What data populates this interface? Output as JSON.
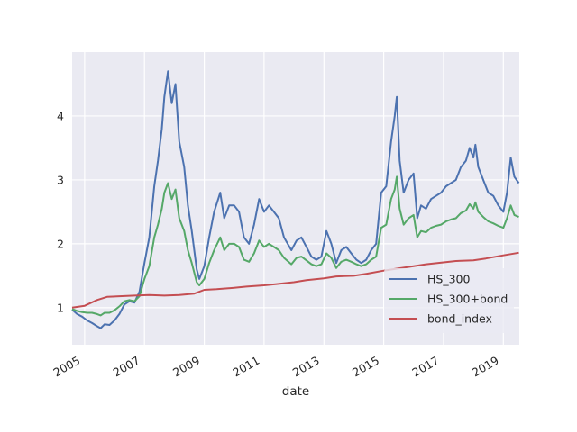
{
  "chart_data": {
    "type": "line",
    "title": "",
    "xlabel": "date",
    "ylabel": "",
    "xlim": [
      "2004-08-01",
      "2019-07-15"
    ],
    "ylim": [
      0.42,
      5.0
    ],
    "x_ticks": [
      "2005",
      "2007",
      "2009",
      "2011",
      "2013",
      "2015",
      "2017",
      "2019"
    ],
    "y_ticks": [
      1,
      2,
      3,
      4
    ],
    "grid": true,
    "background_color": "#EAEAF2",
    "legend_position": "lower-right",
    "series": [
      {
        "name": "HS_300",
        "color": "#4C72B0",
        "points": [
          [
            "2004-08-01",
            0.97
          ],
          [
            "2004-10-01",
            0.9
          ],
          [
            "2004-12-01",
            0.86
          ],
          [
            "2005-02-01",
            0.8
          ],
          [
            "2005-04-01",
            0.76
          ],
          [
            "2005-06-01",
            0.71
          ],
          [
            "2005-07-15",
            0.68
          ],
          [
            "2005-09-01",
            0.74
          ],
          [
            "2005-11-01",
            0.73
          ],
          [
            "2006-01-01",
            0.8
          ],
          [
            "2006-03-01",
            0.9
          ],
          [
            "2006-05-01",
            1.05
          ],
          [
            "2006-07-01",
            1.1
          ],
          [
            "2006-09-01",
            1.08
          ],
          [
            "2006-11-01",
            1.25
          ],
          [
            "2007-01-01",
            1.7
          ],
          [
            "2007-03-01",
            2.1
          ],
          [
            "2007-05-01",
            2.9
          ],
          [
            "2007-06-15",
            3.3
          ],
          [
            "2007-08-01",
            3.8
          ],
          [
            "2007-09-01",
            4.3
          ],
          [
            "2007-10-15",
            4.7
          ],
          [
            "2007-12-01",
            4.2
          ],
          [
            "2008-01-15",
            4.5
          ],
          [
            "2008-03-01",
            3.6
          ],
          [
            "2008-05-01",
            3.2
          ],
          [
            "2008-06-15",
            2.6
          ],
          [
            "2008-08-01",
            2.2
          ],
          [
            "2008-10-01",
            1.6
          ],
          [
            "2008-11-01",
            1.45
          ],
          [
            "2009-01-01",
            1.65
          ],
          [
            "2009-03-01",
            2.1
          ],
          [
            "2009-05-01",
            2.5
          ],
          [
            "2009-07-15",
            2.8
          ],
          [
            "2009-09-01",
            2.4
          ],
          [
            "2009-11-01",
            2.6
          ],
          [
            "2010-01-01",
            2.6
          ],
          [
            "2010-03-01",
            2.5
          ],
          [
            "2010-05-01",
            2.1
          ],
          [
            "2010-07-01",
            2.0
          ],
          [
            "2010-09-01",
            2.3
          ],
          [
            "2010-11-01",
            2.7
          ],
          [
            "2011-01-01",
            2.5
          ],
          [
            "2011-03-01",
            2.6
          ],
          [
            "2011-05-01",
            2.5
          ],
          [
            "2011-07-01",
            2.4
          ],
          [
            "2011-09-01",
            2.1
          ],
          [
            "2011-12-01",
            1.9
          ],
          [
            "2012-02-01",
            2.05
          ],
          [
            "2012-04-01",
            2.1
          ],
          [
            "2012-06-01",
            1.95
          ],
          [
            "2012-08-01",
            1.8
          ],
          [
            "2012-10-01",
            1.75
          ],
          [
            "2012-12-01",
            1.8
          ],
          [
            "2013-02-01",
            2.2
          ],
          [
            "2013-04-01",
            2.0
          ],
          [
            "2013-06-01",
            1.7
          ],
          [
            "2013-08-01",
            1.9
          ],
          [
            "2013-10-01",
            1.95
          ],
          [
            "2013-12-01",
            1.85
          ],
          [
            "2014-02-01",
            1.75
          ],
          [
            "2014-04-01",
            1.7
          ],
          [
            "2014-06-01",
            1.75
          ],
          [
            "2014-08-01",
            1.9
          ],
          [
            "2014-10-01",
            2.0
          ],
          [
            "2014-12-01",
            2.8
          ],
          [
            "2015-02-01",
            2.9
          ],
          [
            "2015-04-01",
            3.6
          ],
          [
            "2015-05-15",
            4.0
          ],
          [
            "2015-06-10",
            4.3
          ],
          [
            "2015-07-15",
            3.3
          ],
          [
            "2015-09-01",
            2.8
          ],
          [
            "2015-11-01",
            3.0
          ],
          [
            "2016-01-01",
            3.1
          ],
          [
            "2016-02-15",
            2.4
          ],
          [
            "2016-04-01",
            2.6
          ],
          [
            "2016-06-01",
            2.55
          ],
          [
            "2016-08-01",
            2.7
          ],
          [
            "2016-10-01",
            2.75
          ],
          [
            "2016-12-01",
            2.8
          ],
          [
            "2017-02-01",
            2.9
          ],
          [
            "2017-04-01",
            2.95
          ],
          [
            "2017-06-01",
            3.0
          ],
          [
            "2017-08-01",
            3.2
          ],
          [
            "2017-10-01",
            3.3
          ],
          [
            "2017-11-15",
            3.5
          ],
          [
            "2018-01-01",
            3.35
          ],
          [
            "2018-01-25",
            3.55
          ],
          [
            "2018-03-01",
            3.2
          ],
          [
            "2018-05-01",
            3.0
          ],
          [
            "2018-07-01",
            2.8
          ],
          [
            "2018-09-01",
            2.75
          ],
          [
            "2018-11-01",
            2.6
          ],
          [
            "2019-01-01",
            2.5
          ],
          [
            "2019-02-15",
            2.8
          ],
          [
            "2019-04-01",
            3.35
          ],
          [
            "2019-05-15",
            3.05
          ],
          [
            "2019-07-10",
            2.95
          ]
        ]
      },
      {
        "name": "HS_300+bond",
        "color": "#55A868",
        "points": [
          [
            "2004-08-01",
            0.98
          ],
          [
            "2004-10-01",
            0.95
          ],
          [
            "2004-12-01",
            0.93
          ],
          [
            "2005-02-01",
            0.92
          ],
          [
            "2005-04-01",
            0.92
          ],
          [
            "2005-06-01",
            0.9
          ],
          [
            "2005-07-15",
            0.88
          ],
          [
            "2005-09-01",
            0.92
          ],
          [
            "2005-11-01",
            0.92
          ],
          [
            "2006-01-01",
            0.96
          ],
          [
            "2006-03-01",
            1.02
          ],
          [
            "2006-05-01",
            1.1
          ],
          [
            "2006-07-01",
            1.12
          ],
          [
            "2006-09-01",
            1.1
          ],
          [
            "2006-11-01",
            1.18
          ],
          [
            "2007-01-01",
            1.45
          ],
          [
            "2007-03-01",
            1.65
          ],
          [
            "2007-05-01",
            2.1
          ],
          [
            "2007-06-15",
            2.3
          ],
          [
            "2007-08-01",
            2.55
          ],
          [
            "2007-09-01",
            2.8
          ],
          [
            "2007-10-15",
            2.95
          ],
          [
            "2007-12-01",
            2.7
          ],
          [
            "2008-01-15",
            2.85
          ],
          [
            "2008-03-01",
            2.4
          ],
          [
            "2008-05-01",
            2.2
          ],
          [
            "2008-06-15",
            1.9
          ],
          [
            "2008-08-01",
            1.7
          ],
          [
            "2008-10-01",
            1.4
          ],
          [
            "2008-11-01",
            1.35
          ],
          [
            "2009-01-01",
            1.45
          ],
          [
            "2009-03-01",
            1.7
          ],
          [
            "2009-05-01",
            1.9
          ],
          [
            "2009-07-15",
            2.1
          ],
          [
            "2009-09-01",
            1.9
          ],
          [
            "2009-11-01",
            2.0
          ],
          [
            "2010-01-01",
            2.0
          ],
          [
            "2010-03-01",
            1.95
          ],
          [
            "2010-05-01",
            1.75
          ],
          [
            "2010-07-01",
            1.72
          ],
          [
            "2010-09-01",
            1.85
          ],
          [
            "2010-11-01",
            2.05
          ],
          [
            "2011-01-01",
            1.95
          ],
          [
            "2011-03-01",
            2.0
          ],
          [
            "2011-05-01",
            1.95
          ],
          [
            "2011-07-01",
            1.9
          ],
          [
            "2011-09-01",
            1.78
          ],
          [
            "2011-12-01",
            1.68
          ],
          [
            "2012-02-01",
            1.78
          ],
          [
            "2012-04-01",
            1.8
          ],
          [
            "2012-06-01",
            1.74
          ],
          [
            "2012-08-01",
            1.68
          ],
          [
            "2012-10-01",
            1.65
          ],
          [
            "2012-12-01",
            1.68
          ],
          [
            "2013-02-01",
            1.85
          ],
          [
            "2013-04-01",
            1.78
          ],
          [
            "2013-06-01",
            1.62
          ],
          [
            "2013-08-01",
            1.72
          ],
          [
            "2013-10-01",
            1.75
          ],
          [
            "2013-12-01",
            1.72
          ],
          [
            "2014-02-01",
            1.68
          ],
          [
            "2014-04-01",
            1.65
          ],
          [
            "2014-06-01",
            1.68
          ],
          [
            "2014-08-01",
            1.75
          ],
          [
            "2014-10-01",
            1.8
          ],
          [
            "2014-12-01",
            2.25
          ],
          [
            "2015-02-01",
            2.3
          ],
          [
            "2015-04-01",
            2.7
          ],
          [
            "2015-05-15",
            2.85
          ],
          [
            "2015-06-10",
            3.05
          ],
          [
            "2015-07-15",
            2.55
          ],
          [
            "2015-09-01",
            2.3
          ],
          [
            "2015-11-01",
            2.4
          ],
          [
            "2016-01-01",
            2.45
          ],
          [
            "2016-02-15",
            2.1
          ],
          [
            "2016-04-01",
            2.2
          ],
          [
            "2016-06-01",
            2.18
          ],
          [
            "2016-08-01",
            2.25
          ],
          [
            "2016-10-01",
            2.28
          ],
          [
            "2016-12-01",
            2.3
          ],
          [
            "2017-02-01",
            2.35
          ],
          [
            "2017-04-01",
            2.38
          ],
          [
            "2017-06-01",
            2.4
          ],
          [
            "2017-08-01",
            2.48
          ],
          [
            "2017-10-01",
            2.52
          ],
          [
            "2017-11-15",
            2.62
          ],
          [
            "2018-01-01",
            2.55
          ],
          [
            "2018-01-25",
            2.65
          ],
          [
            "2018-03-01",
            2.5
          ],
          [
            "2018-05-01",
            2.42
          ],
          [
            "2018-07-01",
            2.35
          ],
          [
            "2018-09-01",
            2.32
          ],
          [
            "2018-11-01",
            2.28
          ],
          [
            "2019-01-01",
            2.25
          ],
          [
            "2019-02-15",
            2.4
          ],
          [
            "2019-04-01",
            2.6
          ],
          [
            "2019-05-15",
            2.45
          ],
          [
            "2019-07-10",
            2.42
          ]
        ]
      },
      {
        "name": "bond_index",
        "color": "#C44E52",
        "points": [
          [
            "2004-08-01",
            1.0
          ],
          [
            "2005-01-01",
            1.03
          ],
          [
            "2005-06-01",
            1.12
          ],
          [
            "2005-10-01",
            1.17
          ],
          [
            "2006-03-01",
            1.18
          ],
          [
            "2006-09-01",
            1.19
          ],
          [
            "2007-03-01",
            1.2
          ],
          [
            "2007-09-01",
            1.19
          ],
          [
            "2008-03-01",
            1.2
          ],
          [
            "2008-09-01",
            1.22
          ],
          [
            "2009-01-01",
            1.28
          ],
          [
            "2009-06-01",
            1.29
          ],
          [
            "2010-01-01",
            1.31
          ],
          [
            "2010-06-01",
            1.33
          ],
          [
            "2011-01-01",
            1.35
          ],
          [
            "2011-06-01",
            1.37
          ],
          [
            "2012-01-01",
            1.4
          ],
          [
            "2012-06-01",
            1.43
          ],
          [
            "2013-01-01",
            1.46
          ],
          [
            "2013-06-01",
            1.49
          ],
          [
            "2014-01-01",
            1.5
          ],
          [
            "2014-06-01",
            1.53
          ],
          [
            "2015-01-01",
            1.58
          ],
          [
            "2015-06-01",
            1.61
          ],
          [
            "2016-01-01",
            1.65
          ],
          [
            "2016-06-01",
            1.68
          ],
          [
            "2017-01-01",
            1.71
          ],
          [
            "2017-06-01",
            1.73
          ],
          [
            "2018-01-01",
            1.74
          ],
          [
            "2018-06-01",
            1.77
          ],
          [
            "2019-01-01",
            1.82
          ],
          [
            "2019-07-10",
            1.86
          ]
        ]
      }
    ]
  }
}
